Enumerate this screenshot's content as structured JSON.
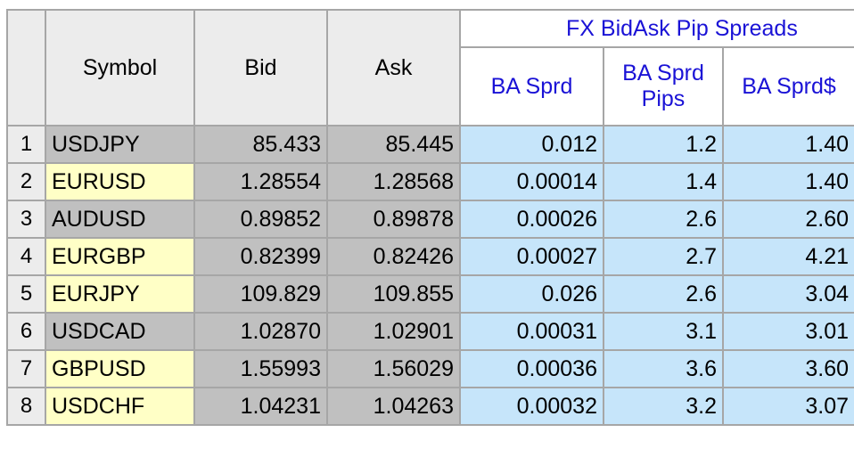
{
  "grid": {
    "group_header": "FX  BidAsk Pip Spreads",
    "columns": {
      "symbol": "Symbol",
      "bid": "Bid",
      "ask": "Ask",
      "ba_sprd": "BA Sprd",
      "ba_sprd_pips": "BA Sprd Pips",
      "ba_sprd_dollar": "BA Sprd$"
    },
    "rows": [
      {
        "num": "1",
        "symbol": "USDJPY",
        "bid": "85.433",
        "ask": "85.445",
        "ba_sprd": "0.012",
        "pips": "1.2",
        "dollar": "1.40",
        "highlight": "gray"
      },
      {
        "num": "2",
        "symbol": "EURUSD",
        "bid": "1.28554",
        "ask": "1.28568",
        "ba_sprd": "0.00014",
        "pips": "1.4",
        "dollar": "1.40",
        "highlight": "yellow"
      },
      {
        "num": "3",
        "symbol": "AUDUSD",
        "bid": "0.89852",
        "ask": "0.89878",
        "ba_sprd": "0.00026",
        "pips": "2.6",
        "dollar": "2.60",
        "highlight": "gray"
      },
      {
        "num": "4",
        "symbol": "EURGBP",
        "bid": "0.82399",
        "ask": "0.82426",
        "ba_sprd": "0.00027",
        "pips": "2.7",
        "dollar": "4.21",
        "highlight": "yellow"
      },
      {
        "num": "5",
        "symbol": "EURJPY",
        "bid": "109.829",
        "ask": "109.855",
        "ba_sprd": "0.026",
        "pips": "2.6",
        "dollar": "3.04",
        "highlight": "yellow"
      },
      {
        "num": "6",
        "symbol": "USDCAD",
        "bid": "1.02870",
        "ask": "1.02901",
        "ba_sprd": "0.00031",
        "pips": "3.1",
        "dollar": "3.01",
        "highlight": "gray"
      },
      {
        "num": "7",
        "symbol": "GBPUSD",
        "bid": "1.55993",
        "ask": "1.56029",
        "ba_sprd": "0.00036",
        "pips": "3.6",
        "dollar": "3.60",
        "highlight": "yellow"
      },
      {
        "num": "8",
        "symbol": "USDCHF",
        "bid": "1.04231",
        "ask": "1.04263",
        "ba_sprd": "0.00032",
        "pips": "3.2",
        "dollar": "3.07",
        "highlight": "yellow"
      }
    ],
    "colors": {
      "header_blue_text": "#1a12d6",
      "symbol_gray": "#c0c0c0",
      "symbol_yellow": "#ffffc6",
      "price_gray": "#c0c0c0",
      "spread_blue": "#c6e5fa",
      "grid_line": "#a6a6a6",
      "header_bg": "#ececec"
    }
  }
}
